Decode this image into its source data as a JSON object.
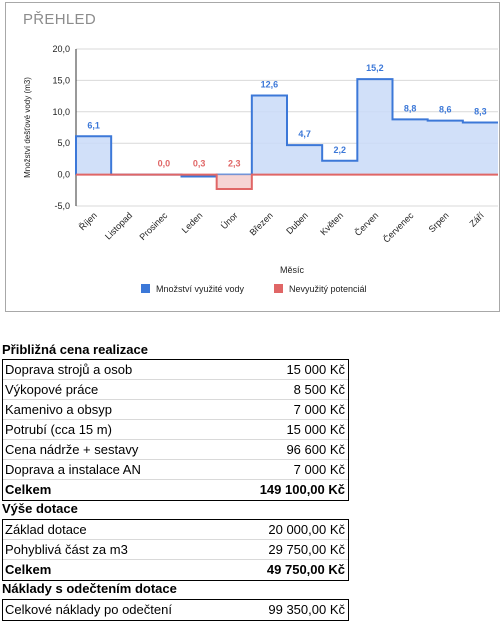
{
  "chart_data": {
    "type": "area-step",
    "title": "PŘEHLED",
    "xlabel": "Měsíc",
    "ylabel": "Množství dešťové vody (m3)",
    "ylim": [
      -5,
      20
    ],
    "yticks": [
      "20,0",
      "15,0",
      "10,0",
      "5,0",
      "0,0",
      "-5,0"
    ],
    "grid": true,
    "legend_position": "bottom",
    "categories": [
      "Říjen",
      "Listopad",
      "Prosinec",
      "Leden",
      "Únor",
      "Březen",
      "Duben",
      "Květen",
      "Červen",
      "Červenec",
      "Srpen",
      "Září"
    ],
    "series": [
      {
        "name": "Množství využité vody",
        "color": "#3c78d8",
        "fill": "#c9daf8",
        "values": [
          6.1,
          0,
          0,
          -0.3,
          0,
          12.6,
          4.7,
          2.2,
          15.2,
          8.8,
          8.6,
          8.3
        ]
      },
      {
        "name": "Nevyužitý potenciál",
        "color": "#e06666",
        "fill": "#f4cccc",
        "values": [
          0,
          0,
          0,
          0,
          -2.3,
          0,
          0,
          0,
          0,
          0,
          0,
          0
        ]
      }
    ],
    "point_labels": [
      {
        "index": 0,
        "text": "6,1",
        "color": "#3c78d8"
      },
      {
        "index": 2,
        "text": "0,0",
        "color": "#e06666"
      },
      {
        "index": 3,
        "text": "0,3",
        "color": "#e06666"
      },
      {
        "index": 4,
        "text": "2,3",
        "color": "#e06666"
      },
      {
        "index": 5,
        "text": "12,6",
        "color": "#3c78d8"
      },
      {
        "index": 6,
        "text": "4,7",
        "color": "#3c78d8"
      },
      {
        "index": 7,
        "text": "2,2",
        "color": "#3c78d8"
      },
      {
        "index": 8,
        "text": "15,2",
        "color": "#3c78d8"
      },
      {
        "index": 9,
        "text": "8,8",
        "color": "#3c78d8"
      },
      {
        "index": 10,
        "text": "8,6",
        "color": "#3c78d8"
      },
      {
        "index": 11,
        "text": "8,3",
        "color": "#3c78d8"
      }
    ]
  },
  "price": {
    "title": "Přibližná cena realizace",
    "rows": [
      {
        "label": "Doprava strojů a osob",
        "value": "15 000 Kč"
      },
      {
        "label": "Výkopové práce",
        "value": "8 500 Kč"
      },
      {
        "label": "Kamenivo a obsyp",
        "value": "7 000 Kč"
      },
      {
        "label": "Potrubí (cca 15 m)",
        "value": "15 000 Kč"
      },
      {
        "label": "Cena nádrže + sestavy",
        "value": "96 600 Kč"
      },
      {
        "label": "Doprava a instalace AN",
        "value": "7 000 Kč"
      }
    ],
    "total_label": "Celkem",
    "total_value": "149 100,00 Kč"
  },
  "subsidy": {
    "title": "Výše dotace",
    "rows": [
      {
        "label": "Základ dotace",
        "value": "20 000,00 Kč"
      },
      {
        "label": "Pohyblivá část za m3",
        "value": "29 750,00 Kč"
      }
    ],
    "total_label": "Celkem",
    "total_value": "49 750,00 Kč"
  },
  "net": {
    "title": "Náklady s odečtením dotace",
    "rows": [
      {
        "label": "Celkové náklady po odečtení",
        "value": "99 350,00 Kč"
      }
    ]
  }
}
